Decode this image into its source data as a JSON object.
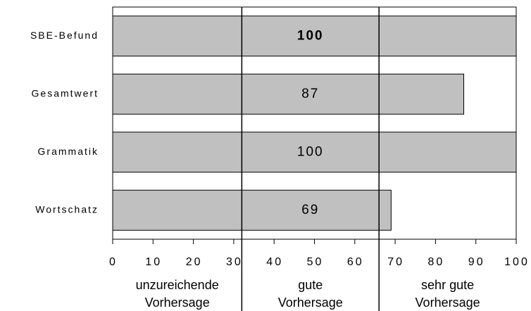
{
  "chart_data": {
    "type": "bar",
    "orientation": "horizontal",
    "categories": [
      "SBE-Befund",
      "Gesamtwert",
      "Grammatik",
      "Wortschatz"
    ],
    "values": [
      100,
      87,
      100,
      69
    ],
    "value_label_bold": [
      true,
      false,
      false,
      false
    ],
    "color": "#c0c0c0",
    "xlim": [
      0,
      100
    ],
    "xticks": [
      0,
      10,
      20,
      30,
      40,
      50,
      60,
      70,
      80,
      90,
      100
    ],
    "zone_bounds": [
      32,
      66
    ],
    "zones": [
      [
        "unzureichende",
        "Vorhersage"
      ],
      [
        "gute",
        "Vorhersage"
      ],
      [
        "sehr gute",
        "Vorhersage"
      ]
    ]
  }
}
